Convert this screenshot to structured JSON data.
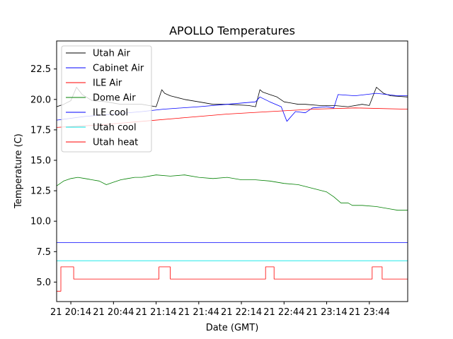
{
  "chart_data": {
    "type": "line",
    "title": "APOLLO Temperatures",
    "xlabel": "Date (GMT)",
    "ylabel": "Temperature (C)",
    "xlim_minutes": [
      0,
      247
    ],
    "ylim": [
      3.4,
      24.8
    ],
    "grid": false,
    "legend_position": "upper-left",
    "x_ticks": [
      {
        "m": 10,
        "label": "21 20:14"
      },
      {
        "m": 40,
        "label": "21 20:44"
      },
      {
        "m": 70,
        "label": "21 21:14"
      },
      {
        "m": 100,
        "label": "21 21:44"
      },
      {
        "m": 130,
        "label": "21 22:14"
      },
      {
        "m": 160,
        "label": "21 22:44"
      },
      {
        "m": 190,
        "label": "21 23:14"
      },
      {
        "m": 220,
        "label": "21 23:44"
      }
    ],
    "y_ticks": [
      {
        "v": 5.0,
        "label": "5.0"
      },
      {
        "v": 7.5,
        "label": "7.5"
      },
      {
        "v": 10.0,
        "label": "10.0"
      },
      {
        "v": 12.5,
        "label": "12.5"
      },
      {
        "v": 15.0,
        "label": "15.0"
      },
      {
        "v": 17.5,
        "label": "17.5"
      },
      {
        "v": 20.0,
        "label": "20.0"
      },
      {
        "v": 22.5,
        "label": "22.5"
      }
    ],
    "series": [
      {
        "name": "Utah Air",
        "color": "#000000",
        "x": [
          0,
          5,
          10,
          14,
          18,
          25,
          35,
          45,
          60,
          70,
          74,
          76,
          80,
          90,
          100,
          110,
          120,
          135,
          140,
          143,
          145,
          150,
          155,
          160,
          165,
          170,
          175,
          185,
          195,
          205,
          215,
          220,
          225,
          230,
          235,
          247
        ],
        "y": [
          19.4,
          19.6,
          19.9,
          21.0,
          20.4,
          19.9,
          19.8,
          19.6,
          19.6,
          19.4,
          20.8,
          20.5,
          20.3,
          20.0,
          19.8,
          19.6,
          19.6,
          19.5,
          19.4,
          20.8,
          20.6,
          20.4,
          20.2,
          19.8,
          19.7,
          19.6,
          19.6,
          19.5,
          19.5,
          19.4,
          19.6,
          19.5,
          21.0,
          20.5,
          20.3,
          20.2
        ]
      },
      {
        "name": "Cabinet Air",
        "color": "#0000ff",
        "x": [
          0,
          20,
          40,
          60,
          75,
          100,
          120,
          140,
          143,
          150,
          158,
          162,
          168,
          175,
          180,
          190,
          195,
          198,
          210,
          225,
          240,
          247
        ],
        "y": [
          18.3,
          18.6,
          18.8,
          19.0,
          19.2,
          19.4,
          19.6,
          19.8,
          20.2,
          19.8,
          19.4,
          18.2,
          19.0,
          18.9,
          19.3,
          19.4,
          19.3,
          20.4,
          20.3,
          20.5,
          20.3,
          20.3
        ]
      },
      {
        "name": "ILE Air",
        "color": "#ff0000",
        "x": [
          0,
          30,
          60,
          90,
          120,
          150,
          180,
          210,
          247
        ],
        "y": [
          17.7,
          17.9,
          18.2,
          18.5,
          18.8,
          19.0,
          19.2,
          19.3,
          19.2
        ]
      },
      {
        "name": "Dome Air",
        "color": "#008000",
        "x": [
          0,
          5,
          10,
          15,
          20,
          25,
          30,
          35,
          40,
          45,
          50,
          55,
          60,
          70,
          80,
          90,
          100,
          110,
          120,
          130,
          140,
          150,
          160,
          170,
          180,
          190,
          195,
          200,
          205,
          208,
          215,
          225,
          235,
          240,
          247
        ],
        "y": [
          12.9,
          13.3,
          13.5,
          13.6,
          13.5,
          13.4,
          13.3,
          13.0,
          13.2,
          13.4,
          13.5,
          13.6,
          13.6,
          13.8,
          13.7,
          13.8,
          13.6,
          13.5,
          13.6,
          13.4,
          13.4,
          13.3,
          13.1,
          13.0,
          12.7,
          12.4,
          12.0,
          11.5,
          11.5,
          11.3,
          11.3,
          11.2,
          11.0,
          10.9,
          10.9
        ]
      },
      {
        "name": "ILE cool",
        "color": "#0000ff",
        "x": [
          0,
          247
        ],
        "y": [
          8.25,
          8.25
        ]
      },
      {
        "name": "Utah cool",
        "color": "#00e5e5",
        "x": [
          0,
          247
        ],
        "y": [
          6.75,
          6.75
        ]
      },
      {
        "name": "Utah heat",
        "color": "#ff0000",
        "step": true,
        "x": [
          0,
          3,
          3,
          12,
          12,
          72,
          72,
          80,
          80,
          147,
          147,
          153,
          153,
          222,
          222,
          229,
          229,
          247
        ],
        "y": [
          4.25,
          4.25,
          6.25,
          6.25,
          5.25,
          5.25,
          6.25,
          6.25,
          5.25,
          5.25,
          6.25,
          6.25,
          5.25,
          5.25,
          6.25,
          6.25,
          5.25,
          5.25
        ]
      }
    ]
  }
}
